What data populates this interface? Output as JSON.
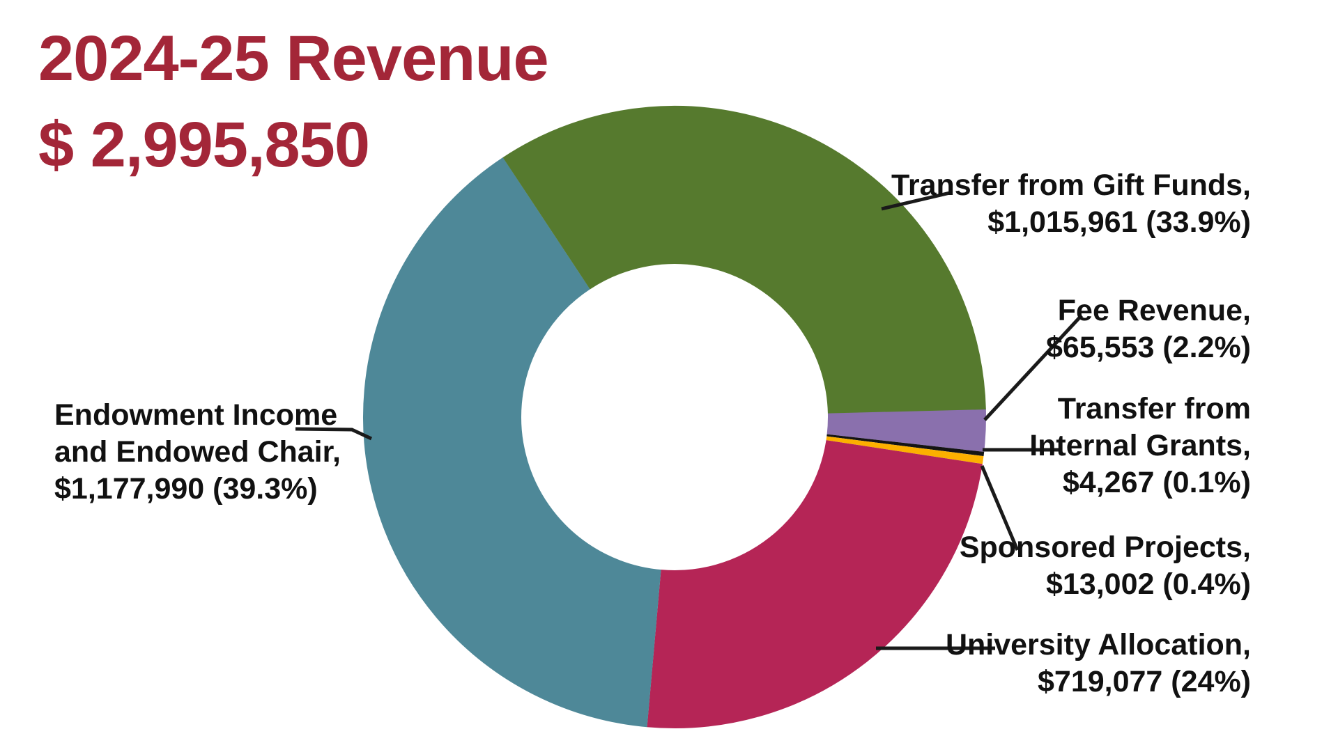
{
  "title": {
    "line1": "2024-25 Revenue",
    "line2": "$ 2,995,850",
    "color": "#a32638"
  },
  "chart_data": {
    "type": "pie",
    "subtype": "donut",
    "title": "2024-25 Revenue",
    "total_label": "$ 2,995,850",
    "total_value": 2995850,
    "start_angle_deg_from_3_oclock": -1.5,
    "direction": "clockwise",
    "background": "#ffffff",
    "segments": [
      {
        "label": "Fee Revenue",
        "value": 65553,
        "percent": 2.2,
        "color": "#8a70ad"
      },
      {
        "label": "Transfer from Internal Grants",
        "value": 4267,
        "percent": 0.1,
        "color": "#141414"
      },
      {
        "label": "Sponsored Projects",
        "value": 13002,
        "percent": 0.4,
        "color": "#fcb000"
      },
      {
        "label": "University Allocation",
        "value": 719077,
        "percent": 24,
        "color": "#b52556"
      },
      {
        "label": "Endowment Income and Endowed Chair",
        "value": 1177990,
        "percent": 39.3,
        "color": "#4e8898"
      },
      {
        "label": "Transfer from Gift Funds",
        "value": 1015961,
        "percent": 33.9,
        "color": "#567a2e"
      }
    ]
  },
  "labels": {
    "gift": {
      "line1": "Transfer from Gift Funds,",
      "line2": "$1,015,961 (33.9%)"
    },
    "fee": {
      "line1": "Fee Revenue,",
      "line2": "$65,553 (2.2%)"
    },
    "internal": {
      "line1": "Transfer from",
      "line2": "Internal Grants,",
      "line3": "$4,267 (0.1%)"
    },
    "sponsored": {
      "line1": "Sponsored Projects,",
      "line2": "$13,002 (0.4%)"
    },
    "university": {
      "line1": "University Allocation,",
      "line2": "$719,077 (24%)"
    },
    "endowment": {
      "line1": "Endowment Income",
      "line2": "and Endowed Chair,",
      "line3": "$1,177,990 (39.3%)"
    }
  },
  "geometry_colors": {
    "leader_line": "#1a1a1a",
    "label_text": "#111111"
  }
}
